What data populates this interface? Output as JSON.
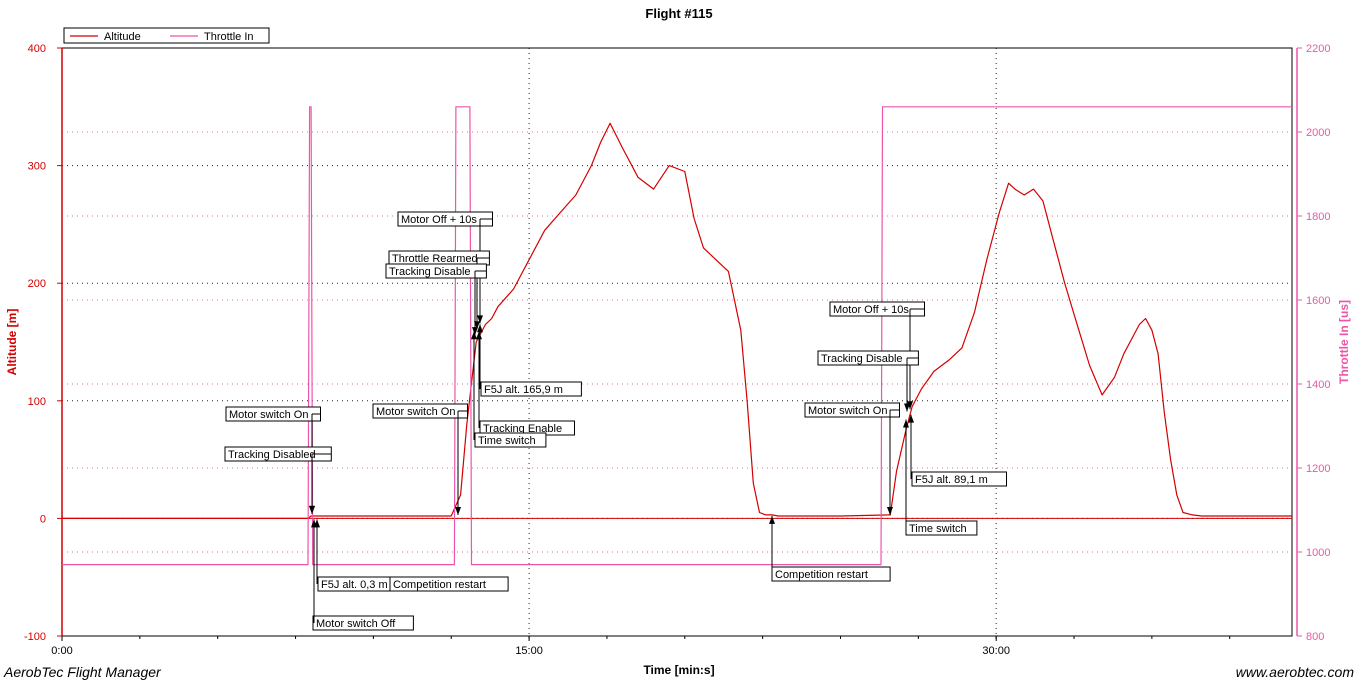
{
  "app": {
    "name": "AerobTec Flight Manager",
    "website": "www.aerobtec.com"
  },
  "colors": {
    "altitude": "#d40000",
    "throttle": "#ee55aa",
    "grid": "#222222",
    "annotation": "#000000"
  },
  "chart_data": {
    "type": "line",
    "title": "Flight #115",
    "xlabel": "Time [min:s]",
    "ylabel": "Altitude [m]",
    "y2label": "Throttle In [us]",
    "xlim": [
      0,
      39.5
    ],
    "ylim": [
      -100,
      400
    ],
    "y2lim": [
      800,
      2200
    ],
    "x_ticks": [
      {
        "value": 0,
        "label": "0:00"
      },
      {
        "value": 15,
        "label": "15:00"
      },
      {
        "value": 30,
        "label": "30:00"
      }
    ],
    "y_ticks": [
      {
        "value": -100,
        "label": "-100"
      },
      {
        "value": 0,
        "label": "0"
      },
      {
        "value": 100,
        "label": "100"
      },
      {
        "value": 200,
        "label": "200"
      },
      {
        "value": 300,
        "label": "300"
      },
      {
        "value": 400,
        "label": "400"
      }
    ],
    "y2_ticks": [
      {
        "value": 800,
        "label": "800"
      },
      {
        "value": 1000,
        "label": "1000"
      },
      {
        "value": 1200,
        "label": "1200"
      },
      {
        "value": 1400,
        "label": "1400"
      },
      {
        "value": 1600,
        "label": "1600"
      },
      {
        "value": 1800,
        "label": "1800"
      },
      {
        "value": 2000,
        "label": "2000"
      },
      {
        "value": 2200,
        "label": "2200"
      }
    ],
    "grid": true,
    "legend": {
      "placement": "top-left"
    },
    "series": [
      {
        "name": "Altitude",
        "axis": "left",
        "x": [
          0,
          7.9,
          8.0,
          12.5,
          12.8,
          13.0,
          13.3,
          13.6,
          13.8,
          14.0,
          14.5,
          15.0,
          15.5,
          16.0,
          16.5,
          17.0,
          17.3,
          17.6,
          18.0,
          18.5,
          19.0,
          19.5,
          20.0,
          20.3,
          20.6,
          21.0,
          21.4,
          21.8,
          22.0,
          22.2,
          22.4,
          22.6,
          22.8,
          23.0,
          23.5,
          25.0,
          26.6,
          26.8,
          27.1,
          27.3,
          27.6,
          28.0,
          28.5,
          28.9,
          29.3,
          29.7,
          30.1,
          30.4,
          30.6,
          30.9,
          31.2,
          31.5,
          31.8,
          32.2,
          32.6,
          33.0,
          33.4,
          33.8,
          34.1,
          34.4,
          34.6,
          34.8,
          35.0,
          35.2,
          35.4,
          35.6,
          35.8,
          36.0,
          36.3,
          36.6,
          36.8,
          37.0,
          37.3,
          37.6,
          38.0,
          39.5
        ],
        "values": [
          0,
          0,
          2,
          2,
          20,
          80,
          150,
          165,
          170,
          180,
          195,
          220,
          245,
          260,
          275,
          300,
          320,
          336,
          315,
          290,
          280,
          300,
          295,
          255,
          230,
          220,
          210,
          160,
          100,
          30,
          5,
          3,
          3,
          2,
          2,
          2,
          3,
          40,
          75,
          95,
          110,
          125,
          135,
          145,
          175,
          220,
          260,
          285,
          280,
          275,
          280,
          270,
          240,
          200,
          165,
          130,
          105,
          120,
          140,
          155,
          165,
          170,
          160,
          140,
          90,
          50,
          20,
          5,
          3,
          2,
          2,
          2,
          2,
          2,
          2,
          2
        ]
      },
      {
        "name": "Throttle In",
        "axis": "right",
        "x": [
          0,
          7.9,
          7.95,
          8.0,
          8.05,
          12.6,
          12.65,
          13.1,
          13.15,
          26.3,
          26.35,
          39.5
        ],
        "values": [
          970,
          970,
          2060,
          2060,
          970,
          970,
          2060,
          2060,
          970,
          970,
          2060,
          2060
        ]
      }
    ],
    "annotations": [
      {
        "text": "Motor switch On",
        "x": 7.93,
        "y": 3
      },
      {
        "text": "Tracking Disabled",
        "x": 7.9,
        "y": 3
      },
      {
        "text": "F5J alt. 0,3 m",
        "x": 8.05,
        "y": 0
      },
      {
        "text": "Competition restart",
        "x": 8.05,
        "y": 0
      },
      {
        "text": "Motor switch Off",
        "x": 7.98,
        "y": 0
      },
      {
        "text": "Motor switch On",
        "x": 12.6,
        "y": 2
      },
      {
        "text": "Motor Off + 10s",
        "x": 13.4,
        "y": 165
      },
      {
        "text": "Throttle Rearmed",
        "x": 13.35,
        "y": 160
      },
      {
        "text": "Tracking Disable",
        "x": 13.25,
        "y": 155
      },
      {
        "text": "F5J alt. 165,9 m",
        "x": 13.4,
        "y": 165.9
      },
      {
        "text": "Tracking Enable",
        "x": 13.4,
        "y": 160
      },
      {
        "text": "Time switch",
        "x": 13.2,
        "y": 160
      },
      {
        "text": "Competition restart",
        "x": 22.3,
        "y": 3
      },
      {
        "text": "Motor Off + 10s",
        "x": 27.4,
        "y": 92
      },
      {
        "text": "Tracking Disable",
        "x": 27.3,
        "y": 90
      },
      {
        "text": "Motor switch On",
        "x": 26.3,
        "y": 2
      },
      {
        "text": "F5J alt. 89,1 m",
        "x": 27.4,
        "y": 89.1
      },
      {
        "text": "Time switch",
        "x": 27.3,
        "y": 85
      }
    ]
  }
}
